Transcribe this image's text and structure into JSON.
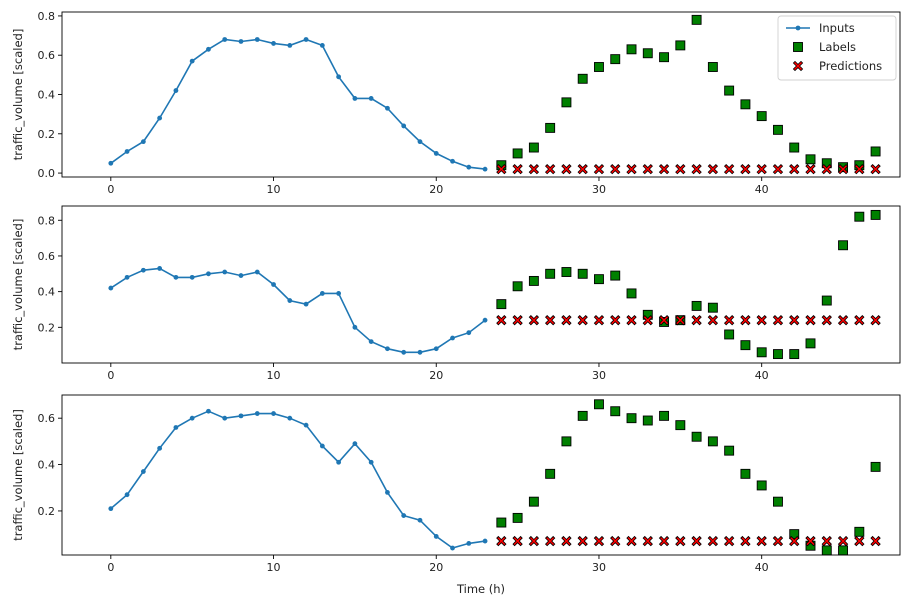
{
  "chart_data": [
    {
      "type": "line",
      "xlim": [
        -3,
        48.5
      ],
      "ylim": [
        -0.02,
        0.82
      ],
      "xticks": [
        0,
        10,
        20,
        30,
        40
      ],
      "yticks": [
        0.0,
        0.2,
        0.4,
        0.6,
        0.8
      ],
      "ylabel": "traffic_volume [scaled]",
      "xlabel": "",
      "legend": {
        "position": "top-right",
        "entries": [
          "Inputs",
          "Labels",
          "Predictions"
        ]
      },
      "series": [
        {
          "name": "Inputs",
          "x": [
            0,
            1,
            2,
            3,
            4,
            5,
            6,
            7,
            8,
            9,
            10,
            11,
            12,
            13,
            14,
            15,
            16,
            17,
            18,
            19,
            20,
            21,
            22,
            23
          ],
          "values": [
            0.05,
            0.11,
            0.16,
            0.28,
            0.42,
            0.57,
            0.63,
            0.68,
            0.67,
            0.68,
            0.66,
            0.65,
            0.68,
            0.65,
            0.49,
            0.38,
            0.38,
            0.33,
            0.24,
            0.16,
            0.1,
            0.06,
            0.03,
            0.02
          ]
        },
        {
          "name": "Labels",
          "x": [
            24,
            25,
            26,
            27,
            28,
            29,
            30,
            31,
            32,
            33,
            34,
            35,
            36,
            37,
            38,
            39,
            40,
            41,
            42,
            43,
            44,
            45,
            46,
            47
          ],
          "values": [
            0.04,
            0.1,
            0.13,
            0.23,
            0.36,
            0.48,
            0.54,
            0.58,
            0.63,
            0.61,
            0.59,
            0.65,
            0.78,
            0.54,
            0.42,
            0.35,
            0.29,
            0.22,
            0.13,
            0.07,
            0.05,
            0.03,
            0.04,
            0.11
          ]
        },
        {
          "name": "Predictions",
          "x": [
            24,
            25,
            26,
            27,
            28,
            29,
            30,
            31,
            32,
            33,
            34,
            35,
            36,
            37,
            38,
            39,
            40,
            41,
            42,
            43,
            44,
            45,
            46,
            47
          ],
          "values": [
            0.02,
            0.02,
            0.02,
            0.02,
            0.02,
            0.02,
            0.02,
            0.02,
            0.02,
            0.02,
            0.02,
            0.02,
            0.02,
            0.02,
            0.02,
            0.02,
            0.02,
            0.02,
            0.02,
            0.02,
            0.02,
            0.02,
            0.02,
            0.02
          ]
        }
      ]
    },
    {
      "type": "line",
      "xlim": [
        -3,
        48.5
      ],
      "ylim": [
        0.0,
        0.88
      ],
      "xticks": [
        0,
        10,
        20,
        30,
        40
      ],
      "yticks": [
        0.2,
        0.4,
        0.6,
        0.8
      ],
      "ylabel": "traffic_volume [scaled]",
      "xlabel": "",
      "series": [
        {
          "name": "Inputs",
          "x": [
            0,
            1,
            2,
            3,
            4,
            5,
            6,
            7,
            8,
            9,
            10,
            11,
            12,
            13,
            14,
            15,
            16,
            17,
            18,
            19,
            20,
            21,
            22,
            23
          ],
          "values": [
            0.42,
            0.48,
            0.52,
            0.53,
            0.48,
            0.48,
            0.5,
            0.51,
            0.49,
            0.51,
            0.44,
            0.35,
            0.33,
            0.39,
            0.39,
            0.2,
            0.12,
            0.08,
            0.06,
            0.06,
            0.08,
            0.14,
            0.17,
            0.24
          ]
        },
        {
          "name": "Labels",
          "x": [
            24,
            25,
            26,
            27,
            28,
            29,
            30,
            31,
            32,
            33,
            34,
            35,
            36,
            37,
            38,
            39,
            40,
            41,
            42,
            43,
            44,
            45,
            46,
            47
          ],
          "values": [
            0.33,
            0.43,
            0.46,
            0.5,
            0.51,
            0.5,
            0.47,
            0.49,
            0.39,
            0.27,
            0.23,
            0.24,
            0.32,
            0.31,
            0.16,
            0.1,
            0.06,
            0.05,
            0.05,
            0.11,
            0.35,
            0.66,
            0.82,
            0.83
          ]
        },
        {
          "name": "Predictions",
          "x": [
            24,
            25,
            26,
            27,
            28,
            29,
            30,
            31,
            32,
            33,
            34,
            35,
            36,
            37,
            38,
            39,
            40,
            41,
            42,
            43,
            44,
            45,
            46,
            47
          ],
          "values": [
            0.24,
            0.24,
            0.24,
            0.24,
            0.24,
            0.24,
            0.24,
            0.24,
            0.24,
            0.24,
            0.24,
            0.24,
            0.24,
            0.24,
            0.24,
            0.24,
            0.24,
            0.24,
            0.24,
            0.24,
            0.24,
            0.24,
            0.24,
            0.24
          ]
        }
      ]
    },
    {
      "type": "line",
      "xlim": [
        -3,
        48.5
      ],
      "ylim": [
        0.01,
        0.7
      ],
      "xticks": [
        0,
        10,
        20,
        30,
        40
      ],
      "yticks": [
        0.2,
        0.4,
        0.6
      ],
      "ylabel": "traffic_volume [scaled]",
      "xlabel": "Time (h)",
      "series": [
        {
          "name": "Inputs",
          "x": [
            0,
            1,
            2,
            3,
            4,
            5,
            6,
            7,
            8,
            9,
            10,
            11,
            12,
            13,
            14,
            15,
            16,
            17,
            18,
            19,
            20,
            21,
            22,
            23
          ],
          "values": [
            0.21,
            0.27,
            0.37,
            0.47,
            0.56,
            0.6,
            0.63,
            0.6,
            0.61,
            0.62,
            0.62,
            0.6,
            0.57,
            0.48,
            0.41,
            0.49,
            0.41,
            0.28,
            0.18,
            0.16,
            0.09,
            0.04,
            0.06,
            0.07
          ]
        },
        {
          "name": "Labels",
          "x": [
            24,
            25,
            26,
            27,
            28,
            29,
            30,
            31,
            32,
            33,
            34,
            35,
            36,
            37,
            38,
            39,
            40,
            41,
            42,
            43,
            44,
            45,
            46,
            47
          ],
          "values": [
            0.15,
            0.17,
            0.24,
            0.36,
            0.5,
            0.61,
            0.66,
            0.63,
            0.6,
            0.59,
            0.61,
            0.57,
            0.52,
            0.5,
            0.46,
            0.36,
            0.31,
            0.24,
            0.1,
            0.05,
            0.03,
            0.03,
            0.11,
            0.39
          ]
        },
        {
          "name": "Predictions",
          "x": [
            24,
            25,
            26,
            27,
            28,
            29,
            30,
            31,
            32,
            33,
            34,
            35,
            36,
            37,
            38,
            39,
            40,
            41,
            42,
            43,
            44,
            45,
            46,
            47
          ],
          "values": [
            0.07,
            0.07,
            0.07,
            0.07,
            0.07,
            0.07,
            0.07,
            0.07,
            0.07,
            0.07,
            0.07,
            0.07,
            0.07,
            0.07,
            0.07,
            0.07,
            0.07,
            0.07,
            0.07,
            0.07,
            0.07,
            0.07,
            0.07,
            0.07
          ]
        }
      ]
    }
  ],
  "colors": {
    "inputs": "#1f77b4",
    "labels_fill": "#008000",
    "predictions_fill": "#ff0000",
    "marker_edge": "#000000",
    "axis": "#000000"
  }
}
